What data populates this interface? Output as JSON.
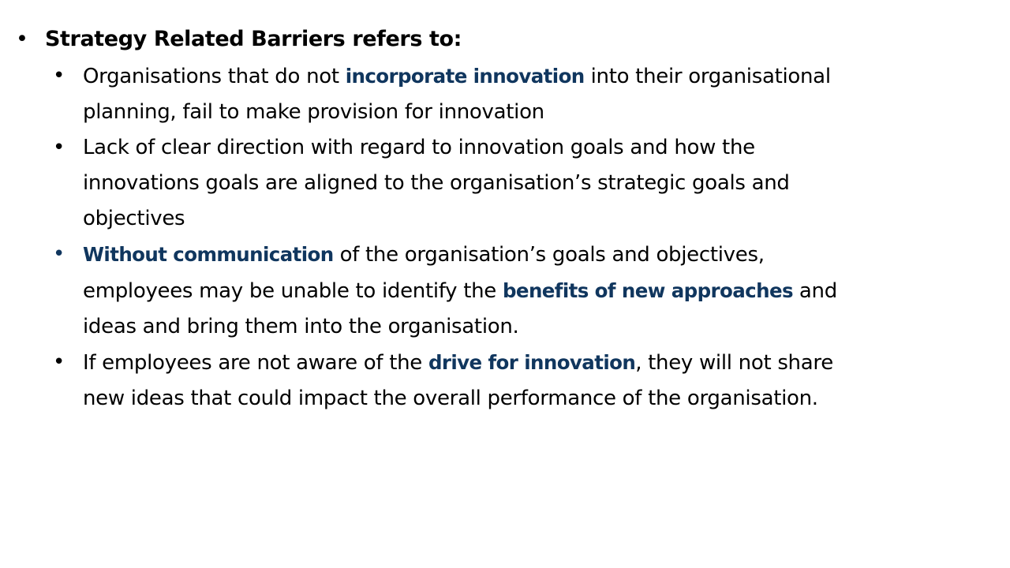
{
  "heading": "Strategy Related Barriers refers to:",
  "bullet_glyph": "•",
  "accent_color": "#10365e",
  "items": [
    {
      "line1_pre": "Organisations that do not ",
      "line1_hl": "incorporate innovation",
      "line1_post": " into their organisational",
      "line2": "planning, fail to make provision for innovation"
    },
    {
      "line1": "Lack of clear direction with regard to innovation goals and how the",
      "line2": "innovations goals are aligned to the organisation’s strategic goals and",
      "line3": "objectives"
    },
    {
      "line1_hl": "Without communication",
      "line1_post": " of the organisation’s goals and objectives,",
      "line2_pre": "employees may be unable to identify the ",
      "line2_hl": "benefits of new approaches",
      "line2_post": " and",
      "line3": "ideas and bring them into the organisation."
    },
    {
      "line1_pre": "If employees are not aware of the ",
      "line1_hl": "drive for innovation",
      "line1_post": ", they will not share",
      "line2": "new ideas that could impact the overall performance of the organisation."
    }
  ]
}
